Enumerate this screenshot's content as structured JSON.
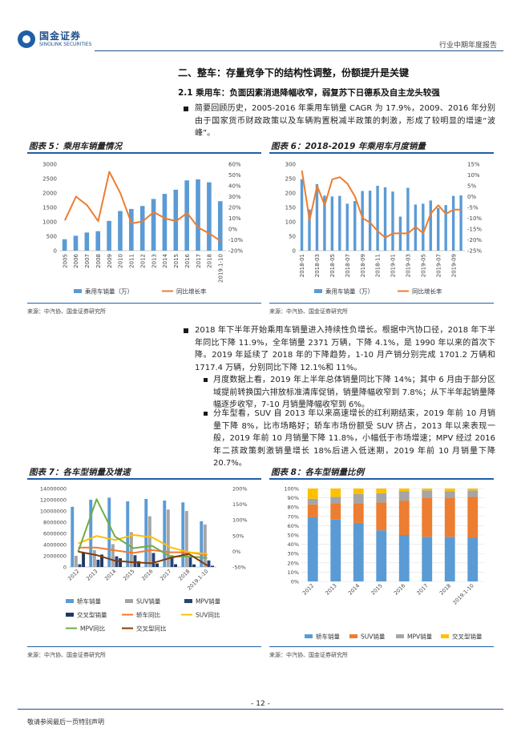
{
  "header": {
    "logo_cn": "国金证券",
    "logo_en": "SINOLINK SECURITIES",
    "report_type": "行业中期年度报告"
  },
  "section": {
    "title": "二、整车：存量竞争下的结构性调整，份额提升是关键",
    "subtitle": "2.1 乘用车：负面因素消退降幅收窄，弱复苏下日德系及自主龙头较强",
    "para1": "简要回顾历史，2005-2016 年乘用车销量 CAGR 为 17.9%，2009、2016 年分别由于国家货币财政政策以及车辆购置税减半政策的刺激，形成了较明显的增速“波峰”。",
    "para2": "2018 年下半年开始乘用车销量进入持续性负增长。根据中汽协口径，2018 年下半年同比下降 11.9%，全年销量 2371 万辆，下降 4.1%，是 1990 年以来的首次下降。2019 年延续了 2018 年的下降趋势，1-10 月产销分别完成 1701.2 万辆和 1717.4 万辆，分别同比下降 12.1%和 11%。",
    "sub1": "月度数据上看，2019 年上半年总体销量同比下降 14%；其中 6 月由于部分区域提前转换国六排放标准清库促销，销量降幅收窄到 7.8%；从下半年起销量降幅逐步收窄，7-10 月销量降幅收窄到 6%。",
    "sub2": "分车型看，SUV 自 2013 年以来高速增长的红利期结束，2019 年前 10 月销量下降 8%，比市场略好；轿车市场份额受 SUV 挤占，2013 年以来表现一般，2019 年前 10 月销量下降 11.8%，小幅低于市场增速；MPV 经过 2016 年二孩政策刺激销量增长 18%后进入低迷期，2019 年前 10 月销量下降 20.7%。"
  },
  "charts": {
    "c5": {
      "title": "图表 5：乘用车销量情况",
      "source": "来源：中汽协、国金证券研究所"
    },
    "c6": {
      "title": "图表 6：2018-2019 年乘用车月度销量",
      "source": "来源：中汽协、国金证券研究所"
    },
    "c7": {
      "title": "图表 7：各车型销量及增速",
      "source": "来源：中汽协、国金证券研究所"
    },
    "c8": {
      "title": "图表 8：各车型销量比例",
      "source": "来源：中汽协、国金证券研究所"
    }
  },
  "chart_data": [
    {
      "id": "c5",
      "type": "bar",
      "categories": [
        "2005",
        "2006",
        "2007",
        "2008",
        "2009",
        "2010",
        "2011",
        "2012",
        "2013",
        "2014",
        "2015",
        "2016",
        "2017",
        "2018",
        "2019.1-10"
      ],
      "series": [
        {
          "name": "乘用车销量（万）",
          "axis": "left",
          "type": "bar",
          "color": "#5b9bd5",
          "values": [
            397,
            517,
            630,
            676,
            1033,
            1375,
            1447,
            1550,
            1793,
            1970,
            2115,
            2438,
            2472,
            2371,
            1717
          ]
        },
        {
          "name": "同比增长率",
          "axis": "right",
          "type": "line",
          "color": "#ed7d31",
          "values": [
            8.0,
            30.0,
            22.0,
            7.3,
            53.0,
            33.0,
            5.2,
            7.1,
            15.7,
            9.9,
            7.3,
            14.9,
            1.4,
            -4.1,
            -11.0
          ]
        }
      ],
      "ylim_left": [
        0,
        3000
      ],
      "yticks_left": [
        0,
        500,
        1000,
        1500,
        2000,
        2500,
        3000
      ],
      "ylim_right": [
        -20,
        60
      ],
      "yticks_right": [
        "-20%",
        "-10%",
        "0%",
        "10%",
        "20%",
        "30%",
        "40%",
        "50%",
        "60%"
      ]
    },
    {
      "id": "c6",
      "type": "bar",
      "categories": [
        "2018-01",
        "2018-02",
        "2018-03",
        "2018-04",
        "2018-05",
        "2018-06",
        "2018-07",
        "2018-08",
        "2018-09",
        "2018-10",
        "2018-11",
        "2018-12",
        "2019-01",
        "2019-02",
        "2019-03",
        "2019-04",
        "2019-05",
        "2019-06",
        "2019-07",
        "2019-08",
        "2019-09",
        "2019-10"
      ],
      "xtick_labels": [
        "2018-01",
        "2018-03",
        "2018-05",
        "2018-07",
        "2018-09",
        "2018-11",
        "2019-01",
        "2019-03",
        "2019-05",
        "2019-07",
        "2019-09"
      ],
      "series": [
        {
          "name": "乘用车销量（万）",
          "axis": "left",
          "type": "bar",
          "color": "#5b9bd5",
          "values": [
            248,
            143,
            231,
            191,
            188,
            190,
            163,
            172,
            207,
            208,
            225,
            220,
            205,
            118,
            218,
            160,
            163,
            174,
            148,
            158,
            190,
            192
          ]
        },
        {
          "name": "同比增长率",
          "axis": "right",
          "type": "line",
          "color": "#ed7d31",
          "values": [
            12,
            -11,
            5,
            -4,
            8,
            9,
            6,
            0,
            -10,
            -12,
            -16,
            -19,
            -17,
            -17,
            -17,
            -14,
            -17,
            -7.8,
            -4,
            -8.0,
            -6,
            -6
          ]
        }
      ],
      "ylim_left": [
        0,
        300
      ],
      "yticks_left": [
        0,
        50,
        100,
        150,
        200,
        250,
        300
      ],
      "ylim_right": [
        -25,
        15
      ],
      "yticks_right": [
        "-25%",
        "-20%",
        "-15%",
        "-10%",
        "-5%",
        "0%",
        "5%",
        "10%",
        "15%"
      ]
    },
    {
      "id": "c7",
      "type": "bar",
      "categories": [
        "2012",
        "2013",
        "2014",
        "2015",
        "2016",
        "2017",
        "2018",
        "2019.1-10"
      ],
      "series": [
        {
          "name": "轿车销量",
          "axis": "left",
          "type": "bar",
          "color": "#5b9bd5",
          "values": [
            10750000,
            12000000,
            12370000,
            11720000,
            12150000,
            11850000,
            11530000,
            8170000
          ]
        },
        {
          "name": "SUV销量",
          "axis": "left",
          "type": "bar",
          "color": "#a5a5a5",
          "values": [
            2000000,
            2990000,
            4080000,
            6220000,
            9050000,
            10250000,
            9990000,
            7580000
          ]
        },
        {
          "name": "MPV销量",
          "axis": "left",
          "type": "bar",
          "color": "#264478",
          "values": [
            490000,
            1300000,
            1910000,
            2110000,
            2500000,
            2070000,
            1730000,
            1170000
          ]
        },
        {
          "name": "交叉型销量",
          "axis": "left",
          "type": "bar",
          "color": "#203864",
          "values": [
            2530000,
            2220000,
            1560000,
            1030000,
            640000,
            500000,
            460000,
            230000
          ]
        },
        {
          "name": "轿车同比",
          "axis": "right",
          "type": "line",
          "color": "#ed7d31",
          "values": [
            12,
            12,
            3,
            -5,
            4,
            -3,
            -3,
            -12
          ]
        },
        {
          "name": "SUV同比",
          "axis": "right",
          "type": "line",
          "color": "#ffc000",
          "values": [
            25,
            49,
            36,
            52,
            45,
            13,
            -3,
            -8
          ]
        },
        {
          "name": "MPV同比",
          "axis": "right",
          "type": "line",
          "color": "#70ad47",
          "values": [
            -1,
            166,
            47,
            10,
            18,
            -17,
            -16,
            -21
          ]
        },
        {
          "name": "交叉型同比",
          "axis": "right",
          "type": "line",
          "color": "#843c0c",
          "values": [
            -1,
            -12,
            -30,
            -35,
            -38,
            -21,
            -8,
            -45
          ]
        }
      ],
      "ylim_left": [
        0,
        14000000
      ],
      "yticks_left": [
        "0",
        "2000000",
        "4000000",
        "6000000",
        "8000000",
        "10000000",
        "12000000",
        "14000000"
      ],
      "ylim_right": [
        -50,
        200
      ],
      "yticks_right": [
        "-50%",
        "0%",
        "50%",
        "100%",
        "150%",
        "200%"
      ]
    },
    {
      "id": "c8",
      "type": "bar",
      "stacked": true,
      "categories": [
        "2012",
        "2013",
        "2014",
        "2015",
        "2016",
        "2017",
        "2018",
        "2019.1-10"
      ],
      "series": [
        {
          "name": "轿车销量",
          "color": "#5b9bd5",
          "values": [
            69,
            67,
            63,
            55,
            50,
            48,
            48,
            47
          ]
        },
        {
          "name": "SUV销量",
          "color": "#ed7d31",
          "values": [
            14,
            17,
            21,
            30,
            37,
            42,
            42,
            44
          ]
        },
        {
          "name": "MPV销量",
          "color": "#a5a5a5",
          "values": [
            6,
            7,
            10,
            10,
            10,
            8,
            7,
            7
          ]
        },
        {
          "name": "交叉型销量",
          "color": "#ffc000",
          "values": [
            11,
            9,
            6,
            5,
            3,
            2,
            3,
            2
          ]
        }
      ],
      "ylim": [
        0,
        100
      ],
      "yticks": [
        "0%",
        "10%",
        "20%",
        "30%",
        "40%",
        "50%",
        "60%",
        "70%",
        "80%",
        "90%",
        "100%"
      ]
    }
  ],
  "footer": {
    "page": "- 12 -",
    "note": "敬请参阅最后一页特别声明"
  }
}
